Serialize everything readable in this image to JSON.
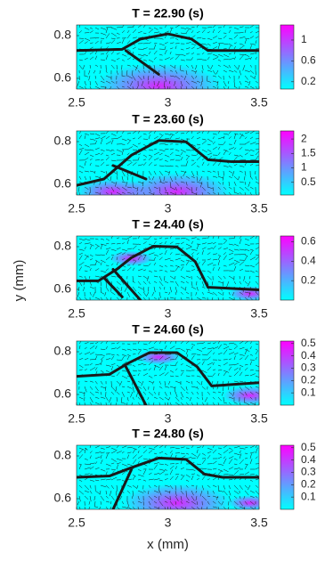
{
  "chart_data": [
    {
      "type": "quiver",
      "title": "T = 22.90 (s)",
      "xlim": [
        2.5,
        3.5
      ],
      "xticks": [
        2.5,
        3,
        3.5
      ],
      "ylim": [
        0.55,
        0.85
      ],
      "yticks": [
        0.6,
        0.8
      ],
      "clim": [
        0.06,
        1.29
      ],
      "cticks": [
        0.2,
        0.6,
        1
      ],
      "cmap": [
        "#00ffff",
        "#ff00ff"
      ],
      "arrow_color": "#1a1a1a",
      "interface_color": "#1a1a1a"
    },
    {
      "type": "quiver",
      "title": "T = 23.60 (s)",
      "xlim": [
        2.5,
        3.5
      ],
      "xticks": [
        2.5,
        3,
        3.5
      ],
      "ylim": [
        0.55,
        0.85
      ],
      "yticks": [
        0.6,
        0.8
      ],
      "clim": [
        0.06,
        2.28
      ],
      "cticks": [
        0.5,
        1,
        1.5,
        2
      ],
      "cmap": [
        "#00ffff",
        "#ff00ff"
      ],
      "arrow_color": "#1a1a1a",
      "interface_color": "#1a1a1a"
    },
    {
      "type": "quiver",
      "title": "T = 24.40 (s)",
      "ylabel": "y (mm)",
      "xlim": [
        2.5,
        3.5
      ],
      "xticks": [
        2.5,
        3,
        3.5
      ],
      "ylim": [
        0.55,
        0.85
      ],
      "yticks": [
        0.6,
        0.8
      ],
      "clim": [
        0,
        0.66
      ],
      "cticks": [
        0.2,
        0.4,
        0.6
      ],
      "cmap": [
        "#00ffff",
        "#ff00ff"
      ],
      "arrow_color": "#1a1a1a",
      "interface_color": "#1a1a1a"
    },
    {
      "type": "quiver",
      "title": "T = 24.60 (s)",
      "xlim": [
        2.5,
        3.5
      ],
      "xticks": [
        2.5,
        3,
        3.5
      ],
      "ylim": [
        0.55,
        0.85
      ],
      "yticks": [
        0.6,
        0.8
      ],
      "clim": [
        0,
        0.52
      ],
      "cticks": [
        0.1,
        0.2,
        0.3,
        0.4,
        0.5
      ],
      "cmap": [
        "#00ffff",
        "#ff00ff"
      ],
      "arrow_color": "#1a1a1a",
      "interface_color": "#1a1a1a"
    },
    {
      "type": "quiver",
      "title": "T = 24.80 (s)",
      "xlabel": "x (mm)",
      "xlim": [
        2.5,
        3.5
      ],
      "xticks": [
        2.5,
        3,
        3.5
      ],
      "ylim": [
        0.55,
        0.85
      ],
      "yticks": [
        0.6,
        0.8
      ],
      "clim": [
        0,
        0.52
      ],
      "cticks": [
        0.1,
        0.2,
        0.3,
        0.4,
        0.5
      ],
      "cmap": [
        "#00ffff",
        "#ff00ff"
      ],
      "arrow_color": "#1a1a1a",
      "interface_color": "#1a1a1a"
    }
  ]
}
